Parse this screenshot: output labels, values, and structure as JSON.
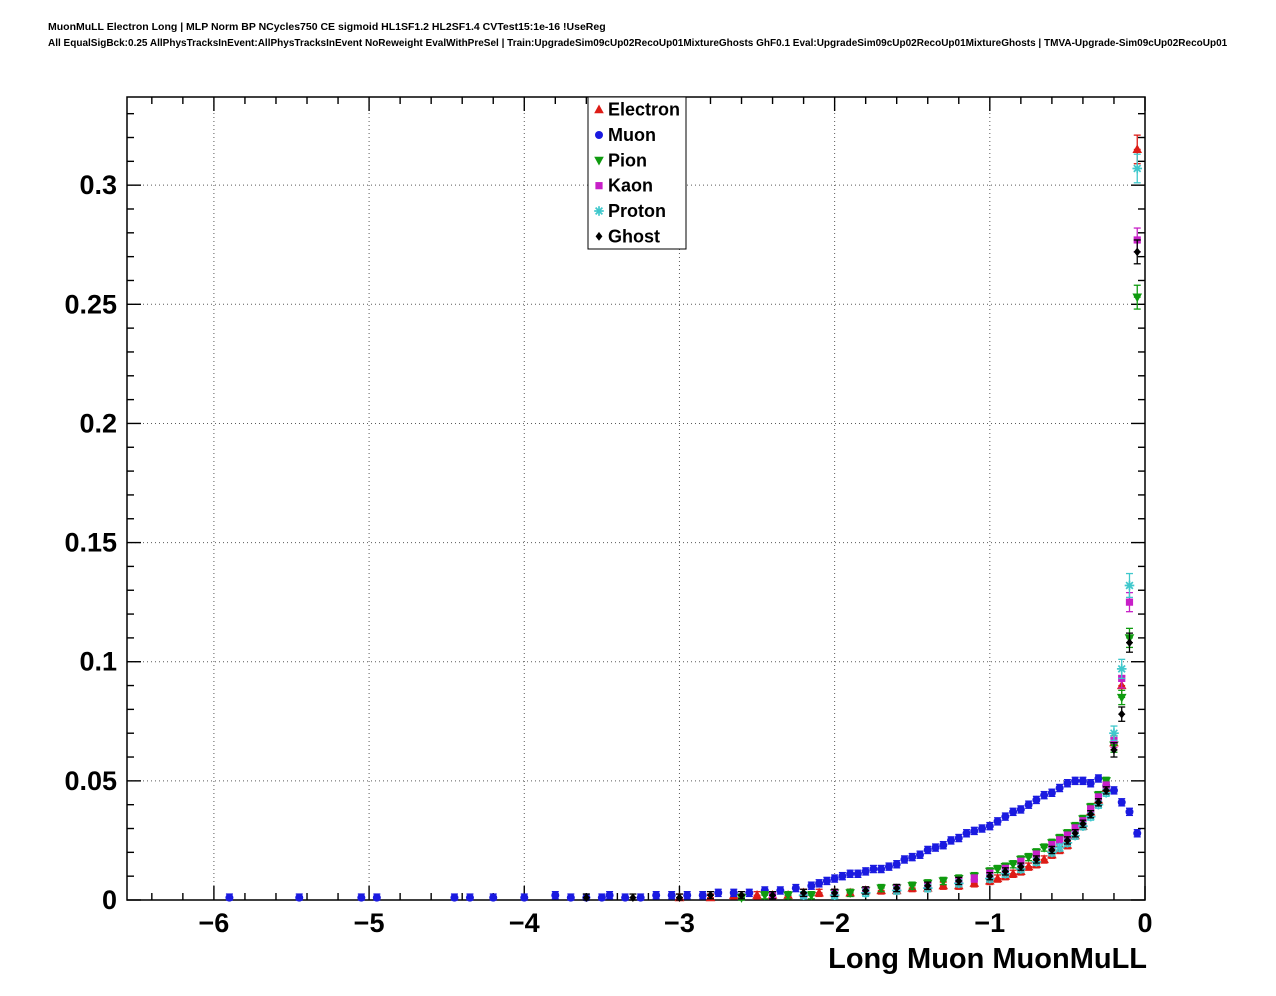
{
  "header": {
    "title_line1": "MuonMuLL Electron Long | MLP Norm BP NCycles750 CE sigmoid HL1SF1.2 HL2SF1.4 CVTest15:1e-16 !UseReg",
    "title_line2": "All EqualSigBck:0.25 AllPhysTracksInEvent:AllPhysTracksInEvent NoReweight EvalWithPreSel | Train:UpgradeSim09cUp02RecoUp01MixtureGhosts GhF0.1 Eval:UpgradeSim09cUp02RecoUp01MixtureGhosts | TMVA-Upgrade-Sim09cUp02RecoUp01"
  },
  "chart_data": {
    "type": "scatter",
    "title": "MuonMuLL Electron Long",
    "xlabel": "Long Muon MuonMuLL",
    "ylabel": "",
    "xlim": [
      -6.56,
      0
    ],
    "ylim": [
      0,
      0.337
    ],
    "grid": true,
    "legend_position": "top-center",
    "xticks": [
      -6,
      -5,
      -4,
      -3,
      -2,
      -1,
      0
    ],
    "xtick_labels": [
      "−6",
      "−5",
      "−4",
      "−3",
      "−2",
      "−1",
      "0"
    ],
    "yticks": [
      0,
      0.05,
      0.1,
      0.15,
      0.2,
      0.25,
      0.3
    ],
    "ytick_labels": [
      "0",
      "0.05",
      "0.1",
      "0.15",
      "0.2",
      "0.25",
      "0.3"
    ],
    "xerr": 0.022,
    "default_yerr": 0.0015,
    "series": [
      {
        "name": "Electron",
        "color": "#dd1c16",
        "marker": "triangle-up",
        "points": [
          [
            -3.0,
            0.001
          ],
          [
            -2.8,
            0.001
          ],
          [
            -2.65,
            0.002
          ],
          [
            -2.5,
            0.002
          ],
          [
            -2.4,
            0.002
          ],
          [
            -2.3,
            0.002
          ],
          [
            -2.2,
            0.003
          ],
          [
            -2.1,
            0.003
          ],
          [
            -2.0,
            0.003
          ],
          [
            -1.9,
            0.003
          ],
          [
            -1.8,
            0.004
          ],
          [
            -1.7,
            0.004
          ],
          [
            -1.6,
            0.004
          ],
          [
            -1.5,
            0.005
          ],
          [
            -1.4,
            0.005
          ],
          [
            -1.3,
            0.006
          ],
          [
            -1.2,
            0.006
          ],
          [
            -1.1,
            0.007
          ],
          [
            -1.0,
            0.008
          ],
          [
            -0.95,
            0.009
          ],
          [
            -0.9,
            0.01
          ],
          [
            -0.85,
            0.011
          ],
          [
            -0.8,
            0.012
          ],
          [
            -0.75,
            0.014
          ],
          [
            -0.7,
            0.015
          ],
          [
            -0.65,
            0.017
          ],
          [
            -0.6,
            0.019
          ],
          [
            -0.55,
            0.021
          ],
          [
            -0.5,
            0.023
          ],
          [
            -0.45,
            0.027
          ],
          [
            -0.4,
            0.031
          ],
          [
            -0.35,
            0.037
          ],
          [
            -0.3,
            0.042
          ],
          [
            -0.25,
            0.047
          ],
          [
            -0.2,
            0.066,
            0.003
          ],
          [
            -0.15,
            0.09,
            0.004
          ],
          [
            -0.05,
            0.315,
            0.006
          ]
        ]
      },
      {
        "name": "Muon",
        "color": "#1a1ae0",
        "marker": "circle",
        "points": [
          [
            -5.9,
            0.001
          ],
          [
            -5.45,
            0.001
          ],
          [
            -5.05,
            0.001
          ],
          [
            -4.95,
            0.001
          ],
          [
            -4.45,
            0.001
          ],
          [
            -4.35,
            0.001
          ],
          [
            -4.2,
            0.001
          ],
          [
            -4.0,
            0.001
          ],
          [
            -3.8,
            0.002
          ],
          [
            -3.7,
            0.001
          ],
          [
            -3.6,
            0.001
          ],
          [
            -3.5,
            0.001
          ],
          [
            -3.45,
            0.002
          ],
          [
            -3.35,
            0.001
          ],
          [
            -3.25,
            0.001
          ],
          [
            -3.15,
            0.002
          ],
          [
            -3.05,
            0.002
          ],
          [
            -2.95,
            0.002
          ],
          [
            -2.85,
            0.002
          ],
          [
            -2.75,
            0.003
          ],
          [
            -2.65,
            0.003
          ],
          [
            -2.55,
            0.003
          ],
          [
            -2.45,
            0.004
          ],
          [
            -2.35,
            0.004
          ],
          [
            -2.25,
            0.005
          ],
          [
            -2.15,
            0.006
          ],
          [
            -2.1,
            0.007
          ],
          [
            -2.05,
            0.008
          ],
          [
            -2.0,
            0.009
          ],
          [
            -1.95,
            0.01
          ],
          [
            -1.9,
            0.011
          ],
          [
            -1.85,
            0.011
          ],
          [
            -1.8,
            0.012
          ],
          [
            -1.75,
            0.013
          ],
          [
            -1.7,
            0.013
          ],
          [
            -1.65,
            0.014
          ],
          [
            -1.6,
            0.015
          ],
          [
            -1.55,
            0.017
          ],
          [
            -1.5,
            0.018
          ],
          [
            -1.45,
            0.019
          ],
          [
            -1.4,
            0.021
          ],
          [
            -1.35,
            0.022
          ],
          [
            -1.3,
            0.023
          ],
          [
            -1.25,
            0.025
          ],
          [
            -1.2,
            0.026
          ],
          [
            -1.15,
            0.028
          ],
          [
            -1.1,
            0.029
          ],
          [
            -1.05,
            0.03
          ],
          [
            -1.0,
            0.031
          ],
          [
            -0.95,
            0.033
          ],
          [
            -0.9,
            0.035
          ],
          [
            -0.85,
            0.037
          ],
          [
            -0.8,
            0.038
          ],
          [
            -0.75,
            0.04
          ],
          [
            -0.7,
            0.042
          ],
          [
            -0.65,
            0.044
          ],
          [
            -0.6,
            0.045
          ],
          [
            -0.55,
            0.047
          ],
          [
            -0.5,
            0.049
          ],
          [
            -0.45,
            0.05
          ],
          [
            -0.4,
            0.05
          ],
          [
            -0.35,
            0.049
          ],
          [
            -0.3,
            0.051
          ],
          [
            -0.25,
            0.048
          ],
          [
            -0.2,
            0.046
          ],
          [
            -0.15,
            0.041
          ],
          [
            -0.1,
            0.037
          ],
          [
            -0.05,
            0.028
          ]
        ]
      },
      {
        "name": "Pion",
        "color": "#0f9b0f",
        "marker": "triangle-down",
        "points": [
          [
            -2.6,
            0.001
          ],
          [
            -2.45,
            0.002
          ],
          [
            -2.3,
            0.002
          ],
          [
            -2.15,
            0.002
          ],
          [
            -2.0,
            0.003
          ],
          [
            -1.9,
            0.003
          ],
          [
            -1.8,
            0.004
          ],
          [
            -1.7,
            0.005
          ],
          [
            -1.6,
            0.005
          ],
          [
            -1.5,
            0.006
          ],
          [
            -1.4,
            0.007
          ],
          [
            -1.3,
            0.008
          ],
          [
            -1.2,
            0.009
          ],
          [
            -1.1,
            0.01
          ],
          [
            -1.0,
            0.012
          ],
          [
            -0.95,
            0.013
          ],
          [
            -0.9,
            0.014
          ],
          [
            -0.85,
            0.015
          ],
          [
            -0.8,
            0.017
          ],
          [
            -0.75,
            0.018
          ],
          [
            -0.7,
            0.02
          ],
          [
            -0.65,
            0.022
          ],
          [
            -0.6,
            0.024
          ],
          [
            -0.55,
            0.026
          ],
          [
            -0.5,
            0.028
          ],
          [
            -0.45,
            0.031
          ],
          [
            -0.4,
            0.034
          ],
          [
            -0.35,
            0.039
          ],
          [
            -0.3,
            0.044
          ],
          [
            -0.25,
            0.05
          ],
          [
            -0.2,
            0.065,
            0.003
          ],
          [
            -0.15,
            0.085,
            0.003
          ],
          [
            -0.1,
            0.11,
            0.004
          ],
          [
            -0.05,
            0.253,
            0.005
          ]
        ]
      },
      {
        "name": "Kaon",
        "color": "#c71fc7",
        "marker": "square",
        "points": [
          [
            -2.4,
            0.002
          ],
          [
            -2.2,
            0.002
          ],
          [
            -2.0,
            0.003
          ],
          [
            -1.8,
            0.004
          ],
          [
            -1.6,
            0.005
          ],
          [
            -1.4,
            0.006
          ],
          [
            -1.2,
            0.008
          ],
          [
            -1.1,
            0.009
          ],
          [
            -1.0,
            0.011
          ],
          [
            -0.9,
            0.013
          ],
          [
            -0.8,
            0.016
          ],
          [
            -0.7,
            0.019
          ],
          [
            -0.6,
            0.023
          ],
          [
            -0.55,
            0.025
          ],
          [
            -0.5,
            0.027
          ],
          [
            -0.45,
            0.03
          ],
          [
            -0.4,
            0.033
          ],
          [
            -0.35,
            0.038
          ],
          [
            -0.3,
            0.043
          ],
          [
            -0.25,
            0.048
          ],
          [
            -0.2,
            0.067,
            0.003
          ],
          [
            -0.15,
            0.093,
            0.004
          ],
          [
            -0.1,
            0.125,
            0.004
          ],
          [
            -0.05,
            0.277,
            0.005
          ]
        ]
      },
      {
        "name": "Proton",
        "color": "#3fc8cc",
        "marker": "star",
        "points": [
          [
            -2.2,
            0.002
          ],
          [
            -2.0,
            0.002
          ],
          [
            -1.8,
            0.003
          ],
          [
            -1.6,
            0.004
          ],
          [
            -1.4,
            0.005
          ],
          [
            -1.2,
            0.007
          ],
          [
            -1.0,
            0.009
          ],
          [
            -0.9,
            0.011
          ],
          [
            -0.8,
            0.013
          ],
          [
            -0.7,
            0.016
          ],
          [
            -0.6,
            0.02
          ],
          [
            -0.55,
            0.022
          ],
          [
            -0.5,
            0.024
          ],
          [
            -0.45,
            0.027
          ],
          [
            -0.4,
            0.031
          ],
          [
            -0.35,
            0.035
          ],
          [
            -0.3,
            0.04
          ],
          [
            -0.25,
            0.045
          ],
          [
            -0.2,
            0.07,
            0.003
          ],
          [
            -0.15,
            0.097,
            0.004
          ],
          [
            -0.1,
            0.132,
            0.005
          ],
          [
            -0.05,
            0.307,
            0.006
          ]
        ]
      },
      {
        "name": "Ghost",
        "color": "#000000",
        "marker": "diamond",
        "points": [
          [
            -3.6,
            0.001
          ],
          [
            -3.3,
            0.001
          ],
          [
            -3.0,
            0.001
          ],
          [
            -2.8,
            0.002
          ],
          [
            -2.6,
            0.002
          ],
          [
            -2.4,
            0.002
          ],
          [
            -2.2,
            0.003
          ],
          [
            -2.0,
            0.003
          ],
          [
            -1.8,
            0.004
          ],
          [
            -1.6,
            0.005
          ],
          [
            -1.4,
            0.006
          ],
          [
            -1.2,
            0.008
          ],
          [
            -1.0,
            0.01
          ],
          [
            -0.9,
            0.012
          ],
          [
            -0.8,
            0.014
          ],
          [
            -0.7,
            0.017
          ],
          [
            -0.6,
            0.021
          ],
          [
            -0.5,
            0.025
          ],
          [
            -0.45,
            0.028
          ],
          [
            -0.4,
            0.032
          ],
          [
            -0.35,
            0.036
          ],
          [
            -0.3,
            0.041
          ],
          [
            -0.25,
            0.046
          ],
          [
            -0.2,
            0.063,
            0.003
          ],
          [
            -0.15,
            0.078,
            0.003
          ],
          [
            -0.1,
            0.108,
            0.004
          ],
          [
            -0.05,
            0.272,
            0.005
          ]
        ]
      }
    ]
  }
}
